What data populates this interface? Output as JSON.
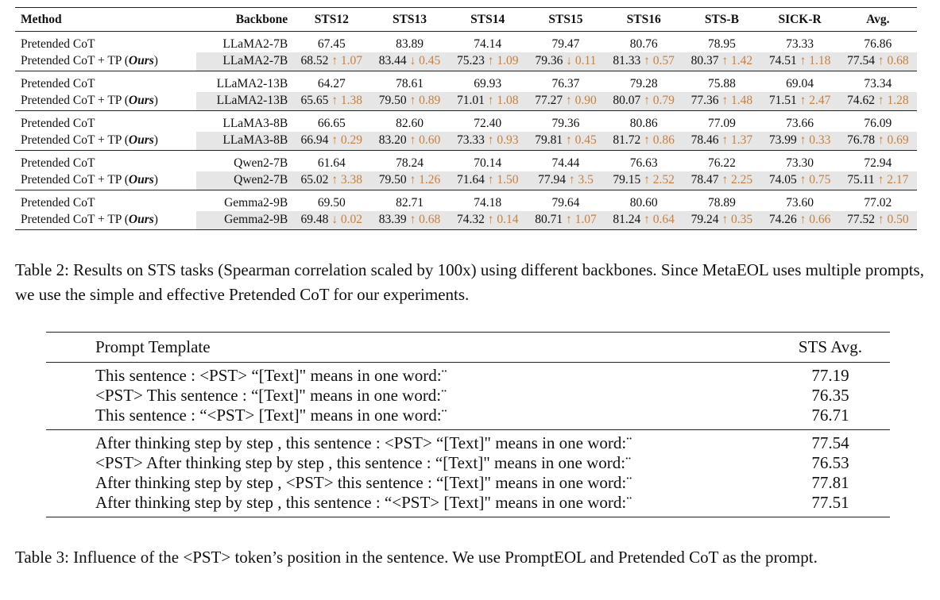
{
  "table2": {
    "headers": [
      "Method",
      "Backbone",
      "STS12",
      "STS13",
      "STS14",
      "STS15",
      "STS16",
      "STS-B",
      "SICK-R",
      "Avg."
    ],
    "groups": [
      {
        "backbone": "LLaMA2-7B",
        "base": {
          "method": "Pretended CoT",
          "values": [
            "67.45",
            "83.89",
            "74.14",
            "79.47",
            "80.76",
            "78.95",
            "73.33",
            "76.86"
          ]
        },
        "tp": {
          "method": "Pretended CoT + TP (",
          "ours": "Ours",
          "close": ")",
          "values": [
            "68.52",
            "83.44",
            "75.23",
            "79.36",
            "81.33",
            "80.37",
            "74.51",
            "77.54"
          ],
          "deltas": [
            "↑ 1.07",
            "↓ 0.45",
            "↑ 1.09",
            "↓ 0.11",
            "↑ 0.57",
            "↑ 1.42",
            "↑ 1.18",
            "↑ 0.68"
          ]
        }
      },
      {
        "backbone": "LLaMA2-13B",
        "base": {
          "method": "Pretended CoT",
          "values": [
            "64.27",
            "78.61",
            "69.93",
            "76.37",
            "79.28",
            "75.88",
            "69.04",
            "73.34"
          ]
        },
        "tp": {
          "method": "Pretended CoT + TP (",
          "ours": "Ours",
          "close": ")",
          "values": [
            "65.65",
            "79.50",
            "71.01",
            "77.27",
            "80.07",
            "77.36",
            "71.51",
            "74.62"
          ],
          "deltas": [
            "↑ 1.38",
            "↑ 0.89",
            "↑ 1.08",
            "↑ 0.90",
            "↑ 0.79",
            "↑ 1.48",
            "↑ 2.47",
            "↑ 1.28"
          ]
        }
      },
      {
        "backbone": "LLaMA3-8B",
        "base": {
          "method": "Pretended CoT",
          "values": [
            "66.65",
            "82.60",
            "72.40",
            "79.36",
            "80.86",
            "77.09",
            "73.66",
            "76.09"
          ]
        },
        "tp": {
          "method": "Pretended CoT + TP (",
          "ours": "Ours",
          "close": ")",
          "values": [
            "66.94",
            "83.20",
            "73.33",
            "79.81",
            "81.72",
            "78.46",
            "73.99",
            "76.78"
          ],
          "deltas": [
            "↑ 0.29",
            "↑ 0.60",
            "↑ 0.93",
            "↑ 0.45",
            "↑ 0.86",
            "↑ 1.37",
            "↑ 0.33",
            "↑ 0.69"
          ]
        }
      },
      {
        "backbone": "Qwen2-7B",
        "base": {
          "method": "Pretended CoT",
          "values": [
            "61.64",
            "78.24",
            "70.14",
            "74.44",
            "76.63",
            "76.22",
            "73.30",
            "72.94"
          ]
        },
        "tp": {
          "method": "Pretended CoT + TP (",
          "ours": "Ours",
          "close": ")",
          "values": [
            "65.02",
            "79.50",
            "71.64",
            "77.94",
            "79.15",
            "78.47",
            "74.05",
            "75.11"
          ],
          "deltas": [
            "↑ 3.38",
            "↑ 1.26",
            "↑ 1.50",
            "↑ 3.5",
            "↑ 2.52",
            "↑ 2.25",
            "↑ 0.75",
            "↑ 2.17"
          ]
        }
      },
      {
        "backbone": "Gemma2-9B",
        "base": {
          "method": "Pretended CoT",
          "values": [
            "69.50",
            "82.71",
            "74.18",
            "79.64",
            "80.60",
            "78.89",
            "73.60",
            "77.02"
          ]
        },
        "tp": {
          "method": "Pretended CoT + TP (",
          "ours": "Ours",
          "close": ")",
          "values": [
            "69.48",
            "83.39",
            "74.32",
            "80.71",
            "81.24",
            "79.24",
            "74.26",
            "77.52"
          ],
          "deltas": [
            "↓ 0.02",
            "↑ 0.68",
            "↑ 0.14",
            "↑ 1.07",
            "↑ 0.64",
            "↑ 0.35",
            "↑ 0.66",
            "↑ 0.50"
          ]
        }
      }
    ],
    "caption": "Table 2: Results on STS tasks (Spearman correlation scaled by 100x) using different backbones. Since MetaEOL uses multiple prompts, we use the simple and effective Pretended CoT for our experiments."
  },
  "table3": {
    "headers": [
      "Prompt Template",
      "STS Avg."
    ],
    "block1": [
      {
        "template": "This sentence : <PST> “[Text]\" means in one word:¨",
        "score": "77.19"
      },
      {
        "template": "<PST> This sentence : “[Text]\" means in one word:¨",
        "score": "76.35"
      },
      {
        "template": "This sentence : “<PST> [Text]\" means in one word:¨",
        "score": "76.71"
      }
    ],
    "block2": [
      {
        "template": "After thinking step by step , this sentence : <PST> “[Text]\" means in one word:¨",
        "score": "77.54"
      },
      {
        "template": "<PST> After thinking step by step , this sentence : “[Text]\" means in one word:¨",
        "score": "76.53"
      },
      {
        "template": "After thinking step by step , <PST> this sentence : “[Text]\" means in one word:¨",
        "score": "77.81"
      },
      {
        "template": "After thinking step by step , this sentence : “<PST> [Text]\" means in one word:¨",
        "score": "77.51"
      }
    ],
    "caption": "Table 3: Influence of the <PST> token’s position in the sentence. We use PromptEOL and Pretended CoT as the prompt."
  },
  "colors": {
    "delta": "#c8803a",
    "highlight_row": "#e6e6e6"
  }
}
